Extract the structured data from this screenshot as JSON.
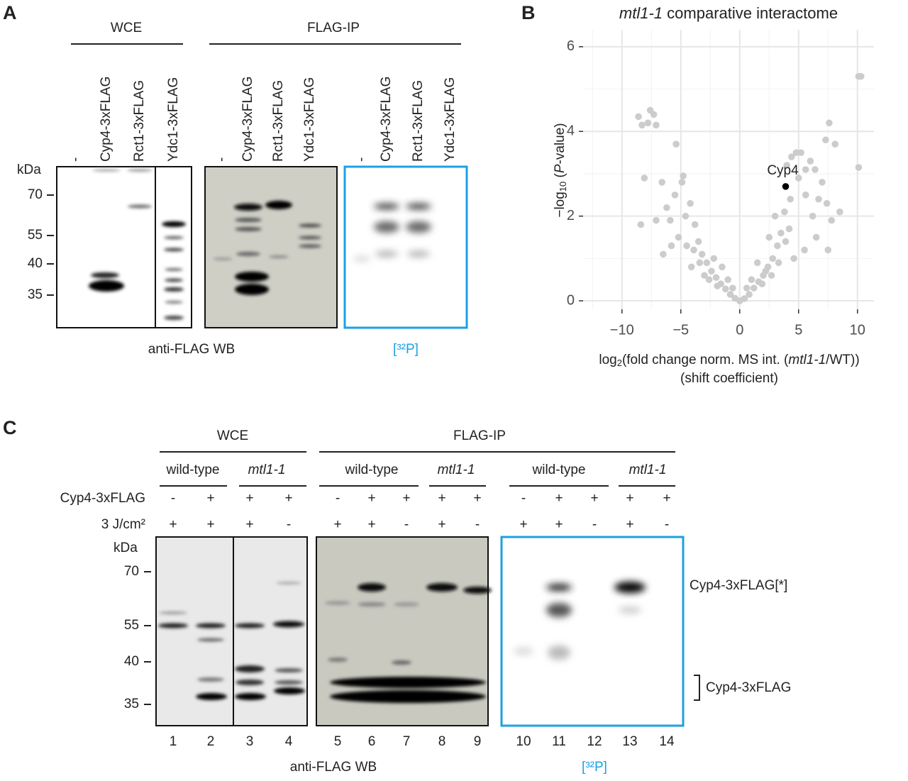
{
  "panel_a": {
    "label": "A",
    "wce": "WCE",
    "flag_ip": "FLAG-IP",
    "lanes": [
      [
        "-",
        "Cyp4-3xFLAG",
        "Rct1-3xFLAG",
        "Ydc1-3xFLAG"
      ],
      [
        "-",
        "Cyp4-3xFLAG",
        "Rct1-3xFLAG",
        "Ydc1-3xFLAG"
      ],
      [
        "-",
        "Cyp4-3xFLAG",
        "Rct1-3xFLAG",
        "Ydc1-3xFLAG"
      ]
    ],
    "kda": "kDa",
    "markers": [
      "70",
      "55",
      "40",
      "35"
    ],
    "wb_label": "anti-FLAG WB",
    "p32_label": "[³²P]"
  },
  "chart_data": {
    "type": "scatter",
    "label": "B",
    "title": [
      "mtl1-1",
      "comparative interactome"
    ],
    "ylabel": [
      "−log",
      "10",
      " (",
      "P",
      "-value)"
    ],
    "xlabel": [
      "log",
      "2",
      "(fold change norm. MS int. (",
      "mtl1-1",
      "/WT))"
    ],
    "xlabel2": "(shift coefficient)",
    "xlim": [
      -13.3,
      11.4
    ],
    "ylim": [
      -0.2,
      6.4
    ],
    "xticks": [
      {
        "value": -10,
        "label": "−10"
      },
      {
        "value": -5,
        "label": "−5"
      },
      0,
      5,
      10
    ],
    "yticks": [
      0,
      2,
      4,
      6
    ],
    "grid": true,
    "series": [
      {
        "color": "#cccccc",
        "x": [
          -8.6,
          -8.3,
          -7.8,
          -7.6,
          -7.3,
          -7.1,
          -5.4,
          -8.1,
          -6.6,
          -6.2,
          -8.4,
          -7.1,
          -5.9,
          -4.8,
          -4.9,
          -5.5,
          -4.2,
          -4.6,
          -3.8,
          -3.5,
          -6.5,
          -5.8,
          -5.2,
          -4.5,
          -3.9,
          -3.2,
          -2.8,
          -2.4,
          -2.0,
          -1.6,
          -1.2,
          -0.8,
          -0.4,
          0,
          0.4,
          0.8,
          1.2,
          1.6,
          2.0,
          2.4,
          2.8,
          3.2,
          3.5,
          3.0,
          3.8,
          4.3,
          4.0,
          4.4,
          4.8,
          5.2,
          5.6,
          6.0,
          6.4,
          5.6,
          5.0,
          6.2,
          6.7,
          7.0,
          7.4,
          7.6,
          7.3,
          8.1,
          8.5,
          7.8,
          7.5,
          10.1,
          10.3,
          10.1,
          6.5,
          5.5,
          4.6,
          -2.2,
          -1.5,
          1.5,
          2.5,
          -3.0,
          -2.6,
          -1.9,
          -1.0,
          -0.6,
          0.6,
          1.0,
          1.9,
          2.2,
          2.7,
          3.3,
          -4.1,
          -3.4,
          3.9,
          4.2
        ],
        "values": [
          4.35,
          4.15,
          4.2,
          4.5,
          4.4,
          4.15,
          3.7,
          2.9,
          2.8,
          2.2,
          1.8,
          1.9,
          1.9,
          2.95,
          2.8,
          2.5,
          2.3,
          2.0,
          1.8,
          1.4,
          1.1,
          1.3,
          1.5,
          1.3,
          1.2,
          1.1,
          0.9,
          0.7,
          0.55,
          0.4,
          0.28,
          0.15,
          0.06,
          0,
          0.05,
          0.15,
          0.3,
          0.45,
          0.6,
          0.8,
          1.0,
          1.3,
          1.6,
          2.0,
          2.1,
          2.4,
          3.2,
          3.4,
          3.5,
          3.5,
          3.1,
          3.3,
          3.1,
          2.5,
          2.9,
          2.0,
          2.4,
          2.8,
          2.3,
          4.2,
          3.8,
          3.7,
          2.1,
          1.9,
          1.2,
          5.3,
          5.3,
          3.15,
          1.5,
          1.2,
          1.0,
          1.0,
          0.8,
          0.9,
          1.5,
          0.6,
          0.5,
          0.35,
          0.5,
          0.3,
          0.3,
          0.5,
          0.4,
          0.7,
          0.6,
          0.9,
          0.8,
          0.9,
          1.4,
          1.7
        ]
      },
      {
        "name": "Cyp4",
        "color": "#000000",
        "x": [
          3.9
        ],
        "values": [
          2.7
        ]
      }
    ]
  },
  "panel_c": {
    "label": "C",
    "wce": "WCE",
    "flag_ip": "FLAG-IP",
    "genotypes": [
      "wild-type",
      "mtl1-1",
      "wild-type",
      "mtl1-1",
      "wild-type",
      "mtl1-1"
    ],
    "rows": [
      {
        "label": "Cyp4-3xFLAG",
        "marks": [
          "-",
          "+",
          "+",
          "+",
          "-",
          "+",
          "+",
          "+",
          "+",
          "-",
          "+",
          "+",
          "+",
          "+"
        ]
      },
      {
        "label": "3 J/cm²",
        "marks": [
          "+",
          "+",
          "+",
          "-",
          "+",
          "+",
          "-",
          "+",
          "-",
          "+",
          "+",
          "-",
          "+",
          "-"
        ]
      }
    ],
    "kda": "kDa",
    "markers": [
      "70",
      "55",
      "40",
      "35"
    ],
    "lane_numbers": [
      "1",
      "2",
      "3",
      "4",
      "5",
      "6",
      "7",
      "8",
      "9",
      "10",
      "11",
      "12",
      "13",
      "14"
    ],
    "wb_label": "anti-FLAG WB",
    "p32_label": "[³²P]",
    "band_labels": [
      "Cyp4-3xFLAG[*]",
      "Cyp4-3xFLAG"
    ]
  }
}
